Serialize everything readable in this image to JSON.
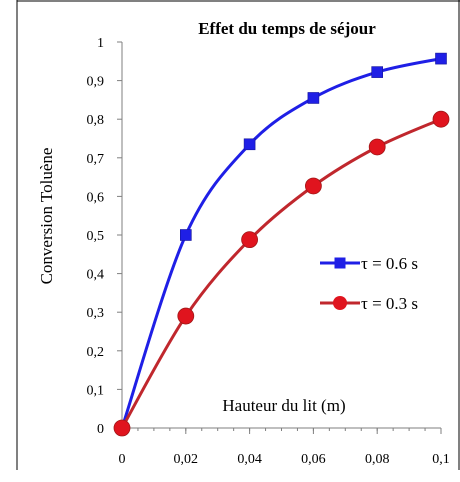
{
  "chart_data": {
    "type": "line",
    "title": "Effet du temps de séjour",
    "xlabel": "Hauteur du lit (m)",
    "ylabel": "Conversion Toluène",
    "xlim": [
      0,
      0.1
    ],
    "ylim": [
      0,
      1
    ],
    "x_ticks": [
      {
        "value": 0,
        "label": "0"
      },
      {
        "value": 0.02,
        "label": "0,02"
      },
      {
        "value": 0.04,
        "label": "0,04"
      },
      {
        "value": 0.06,
        "label": "0,06"
      },
      {
        "value": 0.08,
        "label": "0,08"
      },
      {
        "value": 0.1,
        "label": "0,1"
      }
    ],
    "y_ticks": [
      {
        "value": 0,
        "label": "0"
      },
      {
        "value": 0.1,
        "label": "0,1"
      },
      {
        "value": 0.2,
        "label": "0,2"
      },
      {
        "value": 0.3,
        "label": "0,3"
      },
      {
        "value": 0.4,
        "label": "0,4"
      },
      {
        "value": 0.5,
        "label": "0,5"
      },
      {
        "value": 0.6,
        "label": "0,6"
      },
      {
        "value": 0.7,
        "label": "0,7"
      },
      {
        "value": 0.8,
        "label": "0,8"
      },
      {
        "value": 0.9,
        "label": "0,9"
      },
      {
        "value": 1,
        "label": "1"
      }
    ],
    "grid": false,
    "legend_position": "right",
    "series": [
      {
        "name": "τ = 0.6 s",
        "color": "#1f1fe6",
        "marker": "square",
        "x": [
          0,
          0.02,
          0.04,
          0.06,
          0.08,
          0.1
        ],
        "y": [
          0,
          0.5,
          0.735,
          0.855,
          0.922,
          0.957
        ]
      },
      {
        "name": "τ = 0.3 s",
        "color": "#c0272d",
        "marker": "circle",
        "x": [
          0,
          0.02,
          0.04,
          0.06,
          0.08,
          0.1
        ],
        "y": [
          0,
          0.29,
          0.488,
          0.627,
          0.728,
          0.8
        ]
      }
    ]
  }
}
